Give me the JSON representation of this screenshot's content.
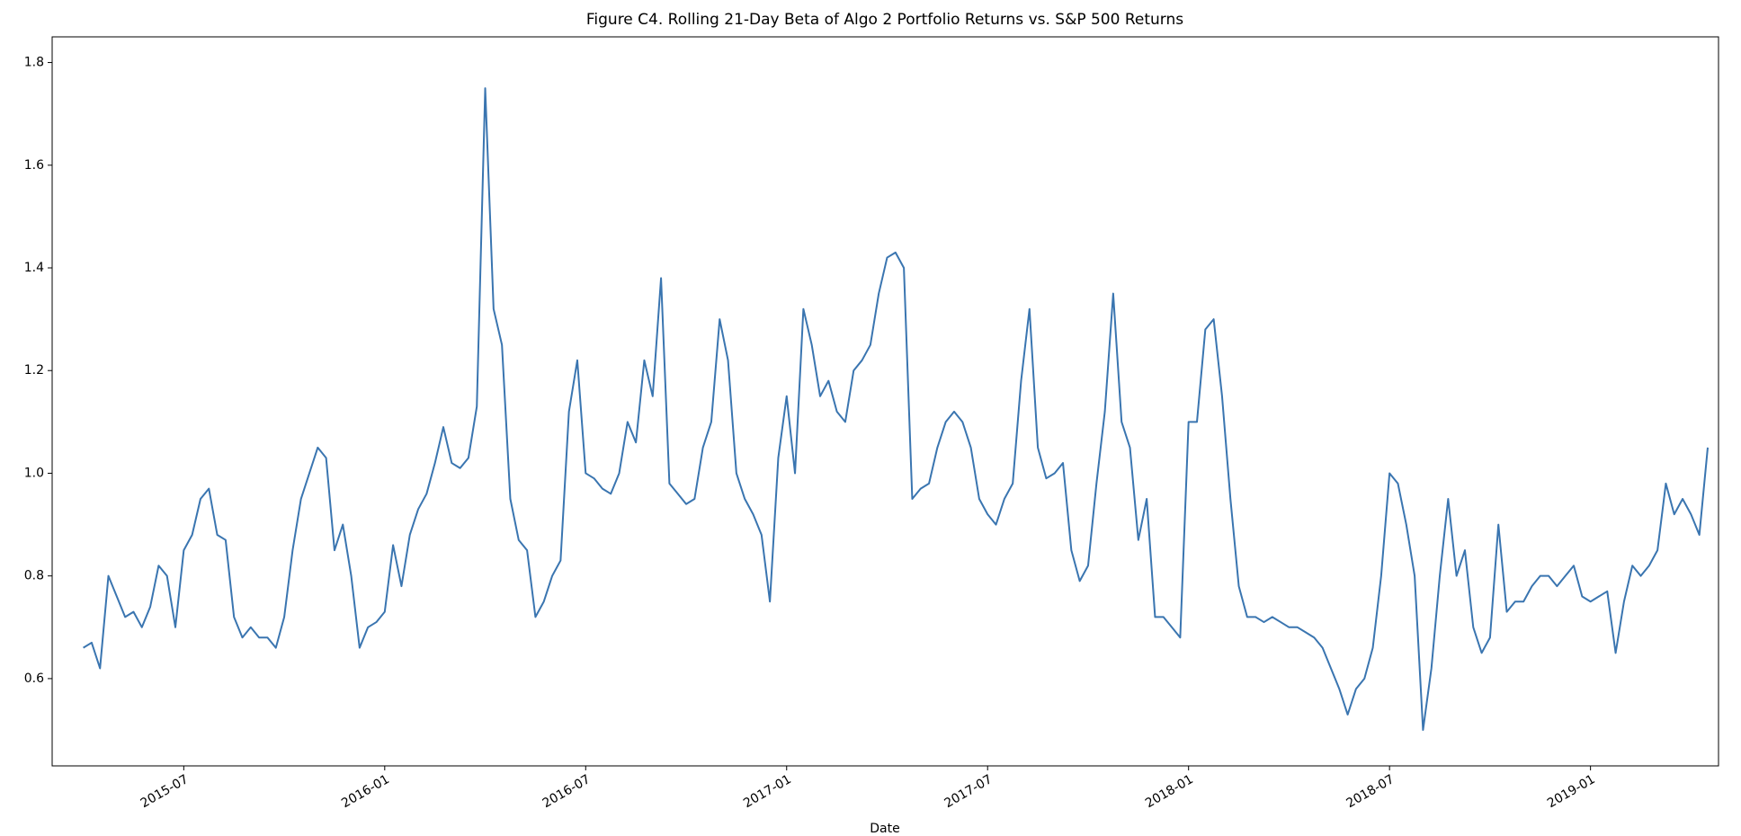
{
  "chart_data": {
    "type": "line",
    "title": "Figure C4. Rolling 21-Day Beta of Algo 2 Portfolio Returns vs. S&P 500 Returns",
    "x_label": "Date",
    "categories": [
      null,
      null,
      null,
      null,
      null,
      null,
      null,
      null,
      null,
      null,
      null,
      null,
      "2015-07",
      null,
      null,
      null,
      null,
      null,
      null,
      null,
      null,
      null,
      null,
      null,
      null,
      null,
      null,
      null,
      null,
      null,
      null,
      null,
      null,
      null,
      null,
      null,
      "2016-01",
      null,
      null,
      null,
      null,
      null,
      null,
      null,
      null,
      null,
      null,
      null,
      null,
      null,
      null,
      null,
      null,
      null,
      null,
      null,
      null,
      null,
      null,
      null,
      "2016-07",
      null,
      null,
      null,
      null,
      null,
      null,
      null,
      null,
      null,
      null,
      null,
      null,
      null,
      null,
      null,
      null,
      null,
      null,
      null,
      null,
      null,
      null,
      null,
      "2017-01",
      null,
      null,
      null,
      null,
      null,
      null,
      null,
      null,
      null,
      null,
      null,
      null,
      null,
      null,
      null,
      null,
      null,
      null,
      null,
      null,
      null,
      null,
      null,
      "2017-07",
      null,
      null,
      null,
      null,
      null,
      null,
      null,
      null,
      null,
      null,
      null,
      null,
      null,
      null,
      null,
      null,
      null,
      null,
      null,
      null,
      null,
      null,
      null,
      "2018-01",
      null,
      null,
      null,
      null,
      null,
      null,
      null,
      null,
      null,
      null,
      null,
      null,
      null,
      null,
      null,
      null,
      null,
      null,
      null,
      null,
      null,
      null,
      null,
      "2018-07",
      null,
      null,
      null,
      null,
      null,
      null,
      null,
      null,
      null,
      null,
      null,
      null,
      null,
      null,
      null,
      null,
      null,
      null,
      null,
      null,
      null,
      null,
      null,
      "2019-01",
      null,
      null,
      null,
      null,
      null,
      null,
      null,
      null,
      null,
      null,
      null,
      null,
      null,
      null
    ],
    "values": [
      0.66,
      0.67,
      0.62,
      0.8,
      0.76,
      0.72,
      0.73,
      0.7,
      0.74,
      0.82,
      0.8,
      0.7,
      0.85,
      0.88,
      0.95,
      0.97,
      0.88,
      0.87,
      0.72,
      0.68,
      0.7,
      0.68,
      0.68,
      0.66,
      0.72,
      0.85,
      0.95,
      1.0,
      1.05,
      1.03,
      0.85,
      0.9,
      0.8,
      0.66,
      0.7,
      0.71,
      0.73,
      0.86,
      0.78,
      0.88,
      0.93,
      0.96,
      1.02,
      1.09,
      1.02,
      1.01,
      1.03,
      1.13,
      1.75,
      1.32,
      1.25,
      0.95,
      0.87,
      0.85,
      0.72,
      0.75,
      0.8,
      0.83,
      1.12,
      1.22,
      1.0,
      0.99,
      0.97,
      0.96,
      1.0,
      1.1,
      1.06,
      1.22,
      1.15,
      1.38,
      0.98,
      0.96,
      0.94,
      0.95,
      1.05,
      1.1,
      1.3,
      1.22,
      1.0,
      0.95,
      0.92,
      0.88,
      0.75,
      1.03,
      1.15,
      1.0,
      1.32,
      1.25,
      1.15,
      1.18,
      1.12,
      1.1,
      1.2,
      1.22,
      1.25,
      1.35,
      1.42,
      1.43,
      1.4,
      0.95,
      0.97,
      0.98,
      1.05,
      1.1,
      1.12,
      1.1,
      1.05,
      0.95,
      0.92,
      0.9,
      0.95,
      0.98,
      1.18,
      1.32,
      1.05,
      0.99,
      1.0,
      1.02,
      0.85,
      0.79,
      0.82,
      0.98,
      1.12,
      1.35,
      1.1,
      1.05,
      0.87,
      0.95,
      0.72,
      0.72,
      0.7,
      0.68,
      1.1,
      1.1,
      1.28,
      1.3,
      1.15,
      0.95,
      0.78,
      0.72,
      0.72,
      0.71,
      0.72,
      0.71,
      0.7,
      0.7,
      0.69,
      0.68,
      0.66,
      0.62,
      0.58,
      0.53,
      0.58,
      0.6,
      0.66,
      0.8,
      1.0,
      0.98,
      0.9,
      0.8,
      0.5,
      0.62,
      0.8,
      0.95,
      0.8,
      0.85,
      0.7,
      0.65,
      0.68,
      0.9,
      0.73,
      0.75,
      0.75,
      0.78,
      0.8,
      0.8,
      0.78,
      0.8,
      0.82,
      0.76,
      0.75,
      0.76,
      0.77,
      0.65,
      0.75,
      0.82,
      0.8,
      0.82,
      0.85,
      0.98,
      0.92,
      0.95,
      0.92,
      0.88,
      1.05
    ],
    "color": "#3a75b0",
    "ylim": [
      0.43,
      1.85
    ],
    "yticks": [
      0.6,
      0.8,
      {
        "value": 1,
        "label": "1.0"
      },
      1.2,
      1.4,
      1.6,
      1.8
    ],
    "grid": false
  }
}
